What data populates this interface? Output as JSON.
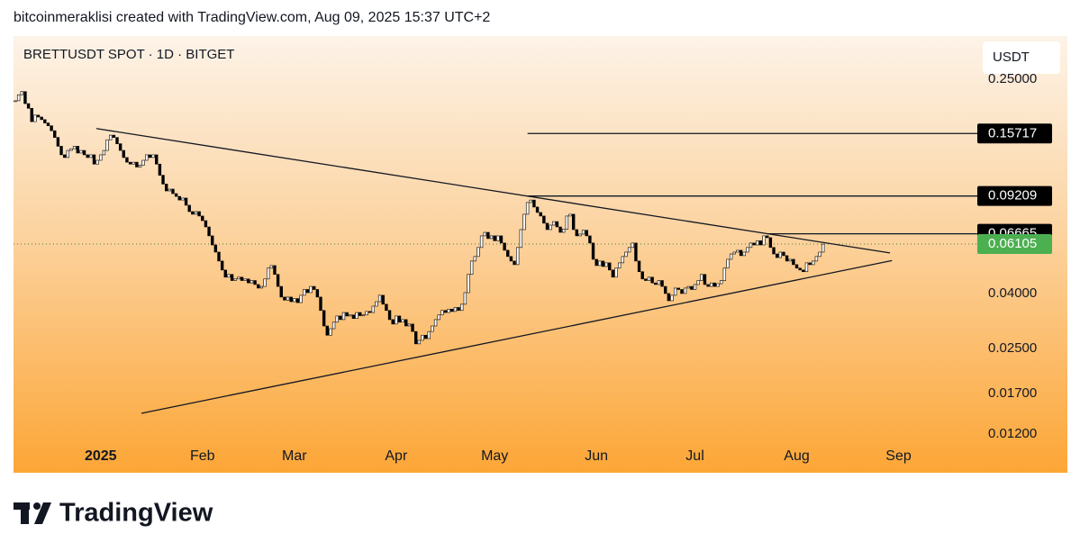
{
  "header": {
    "attribution": "bitcoinmeraklisi created with TradingView.com, Aug 09, 2025 15:37 UTC+2"
  },
  "footer": {
    "brand": "TradingView"
  },
  "chart_data": {
    "type": "candlestick",
    "title": "BRETTUSDT SPOT · 1D · BITGET",
    "currency": "USDT",
    "log_scale": true,
    "up_color": "#ffffff",
    "down_color": "#000000",
    "values": [
      0.208,
      0.219,
      0.225,
      0.203,
      0.195,
      0.174,
      0.184,
      0.181,
      0.177,
      0.172,
      0.168,
      0.161,
      0.152,
      0.141,
      0.131,
      0.128,
      0.136,
      0.138,
      0.141,
      0.133,
      0.136,
      0.131,
      0.128,
      0.131,
      0.121,
      0.125,
      0.131,
      0.136,
      0.149,
      0.155,
      0.152,
      0.144,
      0.136,
      0.128,
      0.123,
      0.121,
      0.123,
      0.118,
      0.12,
      0.125,
      0.131,
      0.128,
      0.131,
      0.121,
      0.11,
      0.102,
      0.0962,
      0.0977,
      0.094,
      0.0918,
      0.089,
      0.0905,
      0.0851,
      0.0806,
      0.0788,
      0.0806,
      0.0776,
      0.0746,
      0.0707,
      0.0655,
      0.0606,
      0.057,
      0.0528,
      0.0489,
      0.046,
      0.0471,
      0.0447,
      0.0453,
      0.046,
      0.0447,
      0.0453,
      0.0438,
      0.0447,
      0.0432,
      0.0419,
      0.0425,
      0.0453,
      0.0497,
      0.0508,
      0.0471,
      0.0425,
      0.0388,
      0.0378,
      0.0388,
      0.0373,
      0.0383,
      0.037,
      0.0394,
      0.0414,
      0.0403,
      0.0425,
      0.0414,
      0.0388,
      0.0346,
      0.0303,
      0.028,
      0.0296,
      0.0313,
      0.033,
      0.032,
      0.034,
      0.033,
      0.0333,
      0.0323,
      0.034,
      0.0331,
      0.0333,
      0.0343,
      0.034,
      0.0359,
      0.0373,
      0.0394,
      0.0365,
      0.0346,
      0.032,
      0.0308,
      0.033,
      0.0313,
      0.032,
      0.0303,
      0.0308,
      0.0289,
      0.026,
      0.0268,
      0.028,
      0.0272,
      0.0289,
      0.0303,
      0.032,
      0.0333,
      0.0346,
      0.034,
      0.035,
      0.0343,
      0.0355,
      0.0346,
      0.0365,
      0.0403,
      0.0471,
      0.0528,
      0.0549,
      0.0593,
      0.0655,
      0.0675,
      0.064,
      0.0655,
      0.0628,
      0.0655,
      0.0616,
      0.0579,
      0.0549,
      0.0528,
      0.0512,
      0.0593,
      0.0691,
      0.0788,
      0.0871,
      0.089,
      0.0838,
      0.08,
      0.0776,
      0.073,
      0.0691,
      0.0718,
      0.074,
      0.0707,
      0.0675,
      0.0694,
      0.0776,
      0.0788,
      0.0691,
      0.0655,
      0.0665,
      0.0687,
      0.0655,
      0.0616,
      0.0536,
      0.0508,
      0.0528,
      0.0504,
      0.052,
      0.0489,
      0.046,
      0.0497,
      0.052,
      0.0549,
      0.057,
      0.0593,
      0.0616,
      0.0528,
      0.0482,
      0.0453,
      0.0447,
      0.046,
      0.0438,
      0.0432,
      0.0447,
      0.0425,
      0.04,
      0.0376,
      0.0394,
      0.0419,
      0.0414,
      0.04,
      0.0419,
      0.0425,
      0.0414,
      0.0432,
      0.0447,
      0.0471,
      0.0432,
      0.0425,
      0.0438,
      0.0425,
      0.0435,
      0.0447,
      0.0497,
      0.0536,
      0.0561,
      0.057,
      0.0579,
      0.0553,
      0.057,
      0.0593,
      0.0616,
      0.0606,
      0.0628,
      0.0606,
      0.0655,
      0.0645,
      0.0593,
      0.0561,
      0.0544,
      0.057,
      0.0553,
      0.0528,
      0.0536,
      0.0512,
      0.0497,
      0.0489,
      0.0482,
      0.052,
      0.0512,
      0.0528,
      0.0549,
      0.057,
      0.06105
    ],
    "xlim": [
      -0.55,
      293
    ],
    "xticks": [
      {
        "value": 26,
        "label": "2025"
      },
      {
        "value": 57,
        "label": "Feb"
      },
      {
        "value": 85,
        "label": "Mar"
      },
      {
        "value": 116,
        "label": "Apr"
      },
      {
        "value": 146,
        "label": "May"
      },
      {
        "value": 177,
        "label": "Jun"
      },
      {
        "value": 207,
        "label": "Jul"
      },
      {
        "value": 238,
        "label": "Aug"
      },
      {
        "value": 269,
        "label": "Sep"
      }
    ],
    "ylim": [
      0.01157,
      0.3619
    ],
    "yticks": [
      {
        "value": 0.25,
        "label": "0.25000"
      },
      {
        "value": 0.04,
        "label": "0.04000"
      },
      {
        "value": 0.025,
        "label": "0.02500"
      },
      {
        "value": 0.017,
        "label": "0.01700"
      },
      {
        "value": 0.012,
        "label": "0.01200"
      }
    ],
    "horizontal_lines": [
      {
        "value": 0.15717,
        "start": 156
      },
      {
        "value": 0.09209,
        "start": 156
      },
      {
        "value": 0.06665,
        "start": 229
      }
    ],
    "trendlines": [
      {
        "x": [
          24.7,
          266.4
        ],
        "y": [
          0.164,
          0.0566
        ]
      },
      {
        "x": [
          38.4,
          267
        ],
        "y": [
          0.01436,
          0.053
        ]
      }
    ]
  }
}
